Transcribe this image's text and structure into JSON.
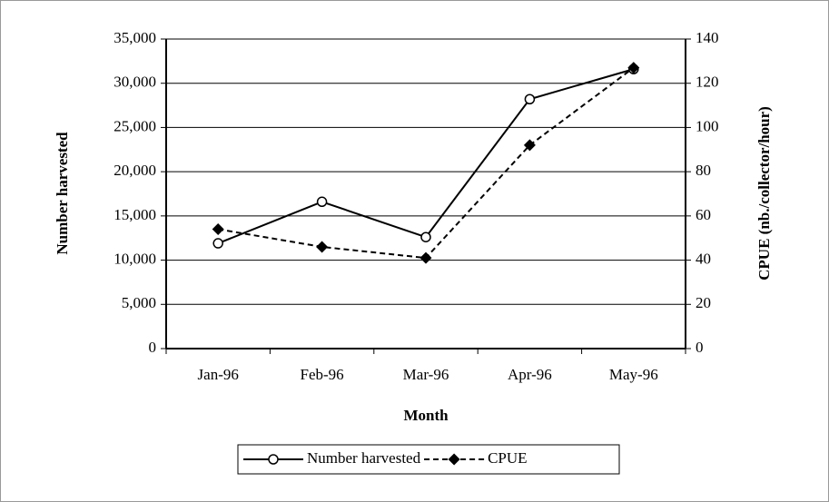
{
  "chart_data": {
    "type": "line",
    "x_label": "Month",
    "y_label": "Number harvested",
    "y2_label": "CPUE (nb./collector/hour)",
    "categories": [
      "Jan-96",
      "Feb-96",
      "Mar-96",
      "Apr-96",
      "May-96"
    ],
    "series": [
      {
        "name": "Number harvested",
        "color": "#000000",
        "marker": "circle",
        "dash": false,
        "values": [
          11900,
          16600,
          12600,
          28200,
          31600
        ]
      },
      {
        "name": "CPUE",
        "color": "#000000",
        "marker": "diamond",
        "dash": true,
        "axis": "y2",
        "values": [
          54,
          46,
          41,
          92,
          127
        ]
      }
    ],
    "ylim": [
      0,
      35000
    ],
    "yticks": [
      0,
      {
        "value": 5000,
        "label": "5,000"
      },
      {
        "value": 10000,
        "label": "10,000"
      },
      {
        "value": 15000,
        "label": "15,000"
      },
      {
        "value": 20000,
        "label": "20,000"
      },
      {
        "value": 25000,
        "label": "25,000"
      },
      {
        "value": 30000,
        "label": "30,000"
      },
      {
        "value": 35000,
        "label": "35,000"
      }
    ],
    "y2lim": [
      0,
      140
    ],
    "y2ticks": [
      0,
      20,
      40,
      60,
      80,
      100,
      120,
      140
    ],
    "grid": true,
    "legend": "bottom"
  }
}
